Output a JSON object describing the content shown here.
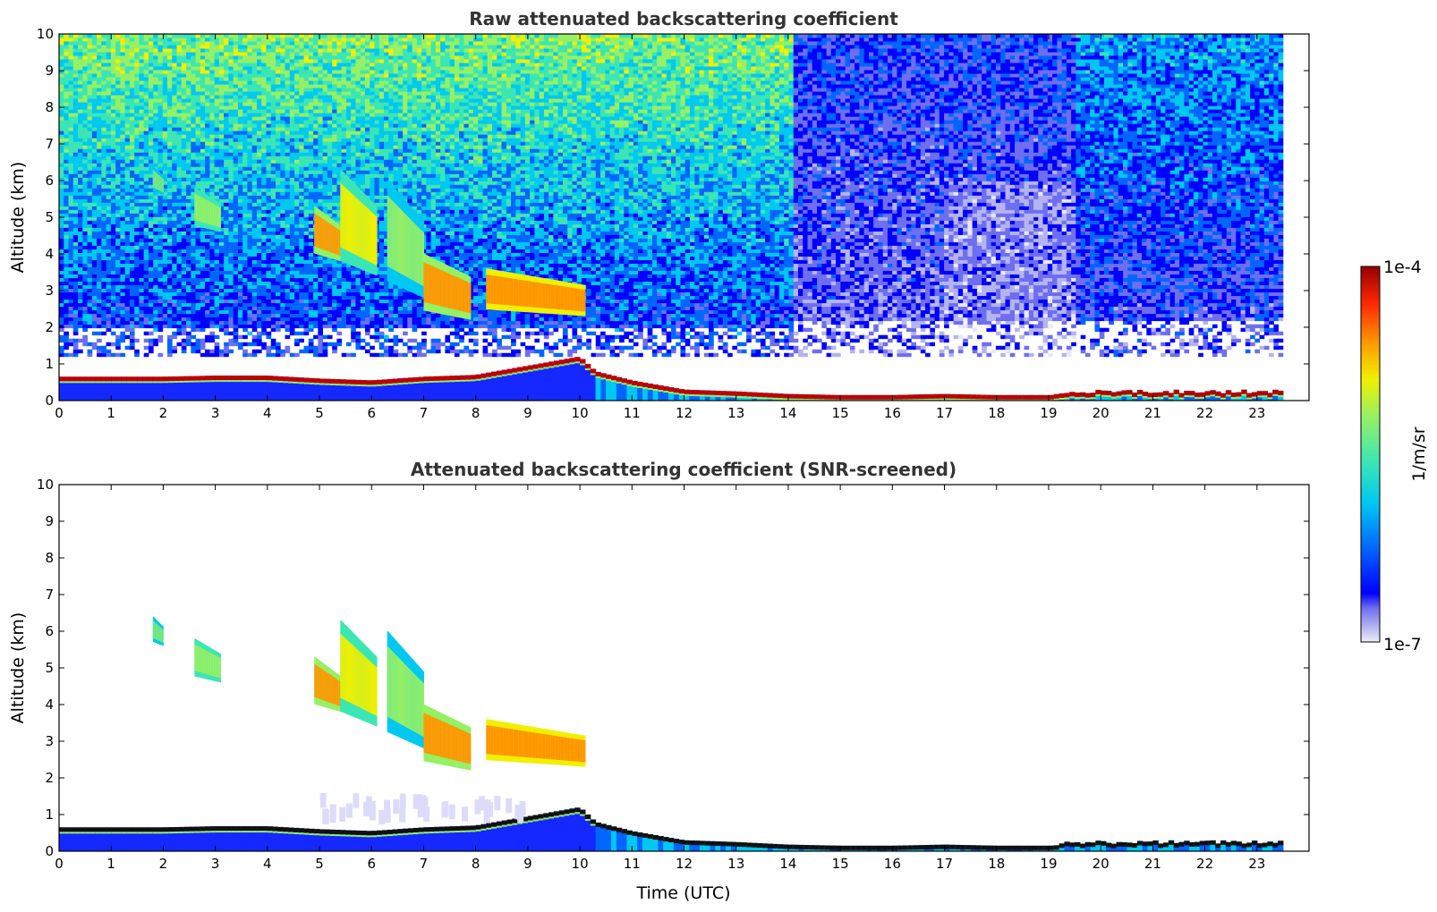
{
  "chart_data": [
    {
      "type": "heatmap",
      "title": "Raw attenuated backscattering coefficient",
      "xlabel": "",
      "ylabel": "Altitude (km)",
      "xlim": [
        0,
        24
      ],
      "ylim": [
        0,
        10
      ],
      "x_ticks": [
        "0",
        "1",
        "2",
        "3",
        "4",
        "5",
        "6",
        "7",
        "8",
        "9",
        "10",
        "11",
        "12",
        "13",
        "14",
        "15",
        "16",
        "17",
        "18",
        "19",
        "20",
        "21",
        "22",
        "23"
      ],
      "y_ticks": [
        "0",
        "1",
        "2",
        "3",
        "4",
        "5",
        "6",
        "7",
        "8",
        "9",
        "10"
      ],
      "data_extent_hours": [
        0,
        23.5
      ],
      "boundary_layer": [
        {
          "t": 0,
          "h": 0.65
        },
        {
          "t": 1,
          "h": 0.65
        },
        {
          "t": 2,
          "h": 0.65
        },
        {
          "t": 3,
          "h": 0.68
        },
        {
          "t": 4,
          "h": 0.68
        },
        {
          "t": 5,
          "h": 0.6
        },
        {
          "t": 6,
          "h": 0.55
        },
        {
          "t": 7,
          "h": 0.65
        },
        {
          "t": 8,
          "h": 0.7
        },
        {
          "t": 9,
          "h": 0.95
        },
        {
          "t": 10,
          "h": 1.2
        },
        {
          "t": 10.3,
          "h": 0.8
        },
        {
          "t": 11,
          "h": 0.55
        },
        {
          "t": 12,
          "h": 0.3
        },
        {
          "t": 13,
          "h": 0.25
        },
        {
          "t": 14,
          "h": 0.18
        },
        {
          "t": 15,
          "h": 0.15
        },
        {
          "t": 16,
          "h": 0.15
        },
        {
          "t": 17,
          "h": 0.18
        },
        {
          "t": 18,
          "h": 0.15
        },
        {
          "t": 19,
          "h": 0.15
        },
        {
          "t": 20,
          "h": 0.2
        },
        {
          "t": 21,
          "h": 0.2
        },
        {
          "t": 22,
          "h": 0.2
        },
        {
          "t": 23,
          "h": 0.2
        },
        {
          "t": 23.5,
          "h": 0.2
        }
      ],
      "cloud_features": [
        {
          "t_start": 1.8,
          "t_end": 2.0,
          "h_bottom": 5.6,
          "h_top": 6.4,
          "level": 0.6
        },
        {
          "t_start": 2.6,
          "t_end": 3.1,
          "h_bottom": 4.6,
          "h_top": 5.8,
          "level": 0.65
        },
        {
          "t_start": 4.9,
          "t_end": 5.4,
          "h_bottom": 3.8,
          "h_top": 5.3,
          "level": 0.75
        },
        {
          "t_start": 5.4,
          "t_end": 6.1,
          "h_bottom": 3.4,
          "h_top": 6.3,
          "level": 0.7
        },
        {
          "t_start": 6.3,
          "t_end": 7.0,
          "h_bottom": 2.8,
          "h_top": 6.0,
          "level": 0.6
        },
        {
          "t_start": 7.0,
          "t_end": 7.9,
          "h_bottom": 2.2,
          "h_top": 4.0,
          "level": 0.78
        },
        {
          "t_start": 8.2,
          "t_end": 10.1,
          "h_bottom": 2.3,
          "h_top": 3.6,
          "level": 0.82
        }
      ]
    },
    {
      "type": "heatmap",
      "title": "Attenuated backscattering coefficient (SNR-screened)",
      "xlabel": "Time (UTC)",
      "ylabel": "Altitude (km)",
      "xlim": [
        0,
        24
      ],
      "ylim": [
        0,
        10
      ],
      "x_ticks": [
        "0",
        "1",
        "2",
        "3",
        "4",
        "5",
        "6",
        "7",
        "8",
        "9",
        "10",
        "11",
        "12",
        "13",
        "14",
        "15",
        "16",
        "17",
        "18",
        "19",
        "20",
        "21",
        "22",
        "23"
      ],
      "y_ticks": [
        "0",
        "1",
        "2",
        "3",
        "4",
        "5",
        "6",
        "7",
        "8",
        "9",
        "10"
      ],
      "data_extent_hours": [
        0,
        23.5
      ]
    }
  ],
  "colorbar": {
    "label": "1/m/sr",
    "max_label": "1e-4",
    "min_label": "1e-7",
    "colors": [
      "#e8e8fa",
      "#b4b4f0",
      "#6e6ef0",
      "#0000ff",
      "#0066ff",
      "#00c8f0",
      "#3ce6b4",
      "#96f064",
      "#f0f000",
      "#ff9600",
      "#ff2800",
      "#960000"
    ]
  }
}
